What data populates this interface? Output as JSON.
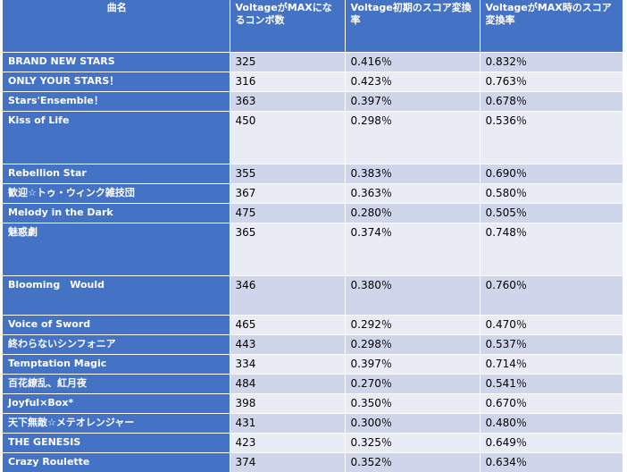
{
  "headers": {
    "name": "曲名",
    "combo": "VoltageがMAXになるコンボ数",
    "initial": "Voltage初期のスコア変換率",
    "max": "VoltageがMAX時のスコア変換率"
  },
  "rows": [
    {
      "name": "BRAND NEW STARS",
      "combo": "325",
      "initial": "0.416％",
      "max": "0.832％"
    },
    {
      "name": "ONLY YOUR STARS！",
      "combo": "316",
      "initial": "0.423％",
      "max": "0.763％"
    },
    {
      "name": "Stars'Ensemble！",
      "combo": "363",
      "initial": "0.397％",
      "max": "0.678％"
    },
    {
      "name": "Kiss of Life",
      "combo": "450",
      "initial": "0.298％",
      "max": "0.536％"
    },
    {
      "name": "Rebellion Star",
      "combo": "355",
      "initial": "0.383％",
      "max": "0.690％"
    },
    {
      "name": "歓迎☆トゥ・ウィンク雑技団",
      "combo": "367",
      "initial": "0.363％",
      "max": "0.580％"
    },
    {
      "name": "Melody in the Dark",
      "combo": "475",
      "initial": "0.280％",
      "max": "0.505％"
    },
    {
      "name": "魅惑劇",
      "combo": "365",
      "initial": "0.374％",
      "max": "0.748％"
    },
    {
      "name": "Blooming　Would",
      "combo": "346",
      "initial": "0.380％",
      "max": "0.760％"
    },
    {
      "name": "Voice of Sword",
      "combo": "465",
      "initial": "0.292％",
      "max": "0.470％"
    },
    {
      "name": "終わらないシンフォニア",
      "combo": "443",
      "initial": "0.298％",
      "max": "0.537％"
    },
    {
      "name": "Temptation Magic",
      "combo": "334",
      "initial": "0.397％",
      "max": "0.714％"
    },
    {
      "name": "百花繚乱、紅月夜",
      "combo": "484",
      "initial": "0.270％",
      "max": "0.541％"
    },
    {
      "name": "Joyful×Box*",
      "combo": "398",
      "initial": "0.350％",
      "max": "0.670％"
    },
    {
      "name": "天下無敵☆メテオレンジャー",
      "combo": "431",
      "initial": "0.300％",
      "max": "0.480％"
    },
    {
      "name": "THE GENESIS",
      "combo": "423",
      "initial": "0.325％",
      "max": "0.649％"
    },
    {
      "name": "Crazy Roulette",
      "combo": "374",
      "initial": "0.352％",
      "max": "0.634％"
    }
  ]
}
